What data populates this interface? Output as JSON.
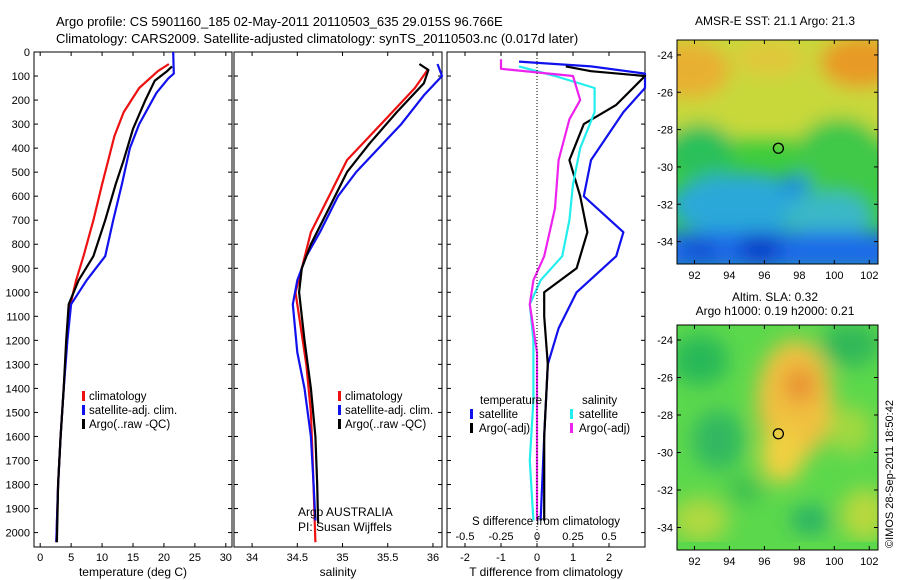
{
  "header": {
    "line1": "Argo profile: CS 5901160_185 02-May-2011 20110503_635 29.015S 96.766E",
    "line2": "Climatology: CARS2009. Satellite-adjusted climatology: synTS_20110503.nc (0.017d later)"
  },
  "footer": {
    "credit": "©IMOS 28-Sep-2011 18:50:42",
    "argo": "Argo AUSTRALIA",
    "pi": "PI: Susan Wijffels"
  },
  "colors": {
    "climatology": "#ee1111",
    "satellite": "#1111ee",
    "argo": "#000000",
    "s_satellite": "#22eeee",
    "s_argo": "#ee22ee"
  },
  "chart_data": [
    {
      "type": "line",
      "id": "temperature",
      "xlabel": "temperature (deg C)",
      "ylabel": "",
      "xlim": [
        -1,
        31
      ],
      "ylim": [
        2060,
        0
      ],
      "xticks": [
        0,
        5,
        10,
        15,
        20,
        25,
        30
      ],
      "yticks": [
        0,
        100,
        200,
        300,
        400,
        500,
        600,
        700,
        800,
        900,
        1000,
        1100,
        1200,
        1300,
        1400,
        1500,
        1600,
        1700,
        1800,
        1900,
        2000
      ],
      "legend": [
        "climatology",
        "satellite-adj. clim.",
        "Argo(..raw -QC)"
      ],
      "series": [
        {
          "name": "climatology",
          "color": "#ee1111",
          "points": [
            [
              20.8,
              50
            ],
            [
              19,
              80
            ],
            [
              16,
              150
            ],
            [
              13.5,
              250
            ],
            [
              12,
              350
            ],
            [
              11,
              450
            ],
            [
              10,
              550
            ],
            [
              8.6,
              700
            ],
            [
              7,
              850
            ],
            [
              5.8,
              950
            ],
            [
              4.9,
              1050
            ],
            [
              4.3,
              1200
            ],
            [
              3.8,
              1400
            ],
            [
              3.3,
              1600
            ],
            [
              2.9,
              1800
            ],
            [
              2.6,
              2040
            ]
          ]
        },
        {
          "name": "satellite-adj. clim.",
          "color": "#1111ee",
          "points": [
            [
              21.5,
              0
            ],
            [
              21.6,
              90
            ],
            [
              20.7,
              110
            ],
            [
              18.8,
              170
            ],
            [
              16,
              300
            ],
            [
              14.5,
              400
            ],
            [
              13.2,
              550
            ],
            [
              11.8,
              700
            ],
            [
              10.5,
              850
            ],
            [
              7.5,
              950
            ],
            [
              5,
              1050
            ],
            [
              4.4,
              1200
            ],
            [
              3.8,
              1400
            ],
            [
              3.3,
              1600
            ],
            [
              2.9,
              1800
            ],
            [
              2.6,
              2040
            ]
          ]
        },
        {
          "name": "Argo(..raw -QC)",
          "color": "#000000",
          "points": [
            [
              21.3,
              60
            ],
            [
              20.5,
              80
            ],
            [
              18.5,
              120
            ],
            [
              17,
              200
            ],
            [
              15,
              320
            ],
            [
              13.5,
              450
            ],
            [
              12.2,
              550
            ],
            [
              10.5,
              700
            ],
            [
              8.6,
              850
            ],
            [
              6.2,
              950
            ],
            [
              4.6,
              1050
            ],
            [
              4.2,
              1200
            ],
            [
              3.8,
              1400
            ],
            [
              3.3,
              1600
            ],
            [
              2.9,
              1800
            ],
            [
              2.7,
              2040
            ]
          ]
        }
      ]
    },
    {
      "type": "line",
      "id": "salinity",
      "xlabel": "salinity",
      "ylabel": "",
      "xlim": [
        33.8,
        36.1
      ],
      "ylim": [
        2060,
        0
      ],
      "xticks": [
        34,
        34.5,
        35,
        35.5,
        36
      ],
      "legend": [
        "climatology",
        "satellite-adj. clim.",
        "Argo(..raw -QC)"
      ],
      "series": [
        {
          "name": "climatology",
          "color": "#ee1111",
          "points": [
            [
              35.95,
              70
            ],
            [
              35.8,
              150
            ],
            [
              35.55,
              250
            ],
            [
              35.3,
              350
            ],
            [
              35.05,
              450
            ],
            [
              34.85,
              600
            ],
            [
              34.65,
              750
            ],
            [
              34.55,
              900
            ],
            [
              34.48,
              1000
            ],
            [
              34.52,
              1100
            ],
            [
              34.6,
              1300
            ],
            [
              34.65,
              1500
            ],
            [
              34.67,
              1700
            ],
            [
              34.7,
              2040
            ]
          ]
        },
        {
          "name": "satellite-adj. clim.",
          "color": "#1111ee",
          "points": [
            [
              36.05,
              50
            ],
            [
              36.1,
              100
            ],
            [
              35.9,
              180
            ],
            [
              35.65,
              300
            ],
            [
              35.4,
              400
            ],
            [
              35.15,
              500
            ],
            [
              34.95,
              600
            ],
            [
              34.75,
              750
            ],
            [
              34.6,
              850
            ],
            [
              34.5,
              950
            ],
            [
              34.45,
              1050
            ],
            [
              34.5,
              1250
            ],
            [
              34.58,
              1400
            ],
            [
              34.65,
              1600
            ],
            [
              34.68,
              1800
            ],
            [
              34.7,
              1950
            ]
          ]
        },
        {
          "name": "Argo(..raw -QC)",
          "color": "#000000",
          "points": [
            [
              35.85,
              50
            ],
            [
              35.95,
              75
            ],
            [
              35.9,
              130
            ],
            [
              35.6,
              250
            ],
            [
              35.3,
              380
            ],
            [
              35.05,
              500
            ],
            [
              34.85,
              650
            ],
            [
              34.65,
              800
            ],
            [
              34.55,
              900
            ],
            [
              34.52,
              1000
            ],
            [
              34.58,
              1200
            ],
            [
              34.65,
              1400
            ],
            [
              34.7,
              1600
            ],
            [
              34.72,
              1800
            ],
            [
              34.73,
              1960
            ]
          ]
        }
      ]
    },
    {
      "type": "line",
      "id": "difference",
      "xlabel": "T difference from climatology",
      "xlabel_top": "S difference from climatology",
      "ylabel": "",
      "xlim": [
        -2.5,
        3
      ],
      "ylim": [
        2060,
        0
      ],
      "xticks": [
        -2,
        -1,
        0,
        1,
        2
      ],
      "xticks_top": [
        -0.5,
        -0.25,
        0,
        0.25,
        0.5
      ],
      "xticklabels_top": [
        "-0.5",
        "-0.25",
        "0",
        "0.25",
        "0.5"
      ],
      "legend_groups": [
        {
          "title": "temperature",
          "entries": [
            "satellite",
            "Argo(-adj)"
          ]
        },
        {
          "title": "salinity",
          "entries": [
            "satellite",
            "Argo(-adj)"
          ]
        }
      ],
      "series": [
        {
          "name": "T satellite",
          "color": "#1111ee",
          "points": [
            [
              -0.5,
              40
            ],
            [
              1.5,
              60
            ],
            [
              2.5,
              80
            ],
            [
              3,
              90
            ],
            [
              3,
              150
            ],
            [
              2.4,
              250
            ],
            [
              1.5,
              450
            ],
            [
              1.3,
              600
            ],
            [
              2.4,
              750
            ],
            [
              2.2,
              850
            ],
            [
              1.1,
              1000
            ],
            [
              0.6,
              1150
            ],
            [
              0.3,
              1300
            ],
            [
              0.2,
              1600
            ],
            [
              0.1,
              1950
            ]
          ]
        },
        {
          "name": "T Argo(-adj)",
          "color": "#000000",
          "points": [
            [
              0.8,
              60
            ],
            [
              1.5,
              80
            ],
            [
              3,
              100
            ],
            [
              2.2,
              220
            ],
            [
              1.3,
              300
            ],
            [
              0.9,
              450
            ],
            [
              1.2,
              600
            ],
            [
              1.4,
              750
            ],
            [
              1.1,
              900
            ],
            [
              0.2,
              1000
            ],
            [
              0.2,
              1100
            ],
            [
              0.3,
              1300
            ],
            [
              0.2,
              1600
            ],
            [
              0.2,
              1950
            ]
          ]
        },
        {
          "name": "S satellite",
          "color": "#22eeee",
          "points": [
            [
              -0.5,
              60
            ],
            [
              0.5,
              100
            ],
            [
              1.6,
              150
            ],
            [
              1.6,
              250
            ],
            [
              1.2,
              400
            ],
            [
              1.0,
              550
            ],
            [
              0.9,
              700
            ],
            [
              0.7,
              850
            ],
            [
              0.1,
              950
            ],
            [
              -0.2,
              1050
            ],
            [
              -0.1,
              1200
            ],
            [
              -0.1,
              1450
            ],
            [
              -0.2,
              1700
            ],
            [
              -0.1,
              1950
            ]
          ]
        },
        {
          "name": "S Argo(-adj)",
          "color": "#ee22ee",
          "points": [
            [
              -1.0,
              30
            ],
            [
              -1.0,
              70
            ],
            [
              1.0,
              100
            ],
            [
              1.2,
              200
            ],
            [
              0.9,
              280
            ],
            [
              0.6,
              450
            ],
            [
              0.5,
              650
            ],
            [
              0.2,
              850
            ],
            [
              -0.1,
              950
            ],
            [
              -0.2,
              1050
            ],
            [
              0.0,
              1250
            ],
            [
              0.0,
              1500
            ],
            [
              0.0,
              1750
            ],
            [
              0.0,
              1950
            ]
          ]
        }
      ]
    },
    {
      "type": "heatmap",
      "id": "sst_map",
      "title": "AMSR-E SST: 21.1 Argo: 21.3",
      "xticks": [
        92,
        94,
        96,
        98,
        100,
        102
      ],
      "yticks": [
        -24,
        -26,
        -28,
        -30,
        -32,
        -34
      ],
      "xlim": [
        91,
        102.5
      ],
      "ylim": [
        -35.2,
        -23.2
      ],
      "marker": [
        96.8,
        -29.0
      ]
    },
    {
      "type": "heatmap",
      "id": "sla_map",
      "title": "Altim. SLA: 0.32",
      "subtitle": "Argo h1000: 0.19 h2000: 0.21",
      "xticks": [
        92,
        94,
        96,
        98,
        100,
        102
      ],
      "yticks": [
        -24,
        -26,
        -28,
        -30,
        -32,
        -34
      ],
      "xlim": [
        91,
        102.5
      ],
      "ylim": [
        -35.2,
        -23.2
      ],
      "marker": [
        96.8,
        -29.0
      ]
    }
  ]
}
